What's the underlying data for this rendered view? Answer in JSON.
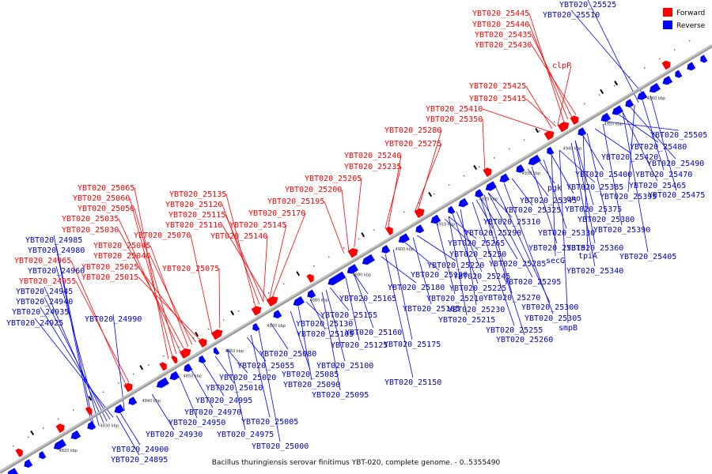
{
  "caption": "Bacillus thuringiensis serovar finitimus YBT-020, complete genome. - 0..5355490",
  "legend": [
    {
      "label": "Forward",
      "color": "#ff0000"
    },
    {
      "label": "Reverse",
      "color": "#0000ff"
    }
  ],
  "colors": {
    "forward": "#ff0000",
    "reverse": "#0000ff",
    "backbone": "#888888"
  },
  "tick_labels": [
    "4820 kbp",
    "4830 kbp",
    "4840 kbp",
    "4850 kbp",
    "4860 kbp",
    "4870 kbp",
    "4880 kbp",
    "4890 kbp",
    "4900 kbp",
    "4910 kbp",
    "4920 kbp",
    "4930 kbp",
    "4940 kbp",
    "4950 kbp",
    "4960 kbp"
  ],
  "forward_labels": [
    "YBT020_25445",
    "YBT020_25440",
    "YBT020_25435",
    "YBT020_25430",
    "clpP",
    "YBT020_25425",
    "YBT020_25415",
    "YBT020_25410",
    "YBT020_25350",
    "YBT020_25280",
    "YBT020_25275",
    "YBT020_25240",
    "YBT020_25235",
    "YBT020_25205",
    "YBT020_25200",
    "YBT020_25195",
    "YBT020_25065",
    "YBT020_25060",
    "YBT020_25050",
    "YBT020_25035",
    "YBT020_25030",
    "YBT020_25045",
    "YBT020_25040",
    "YBT020_25025",
    "YBT020_25015",
    "YBT020_25070",
    "YBT020_25135",
    "YBT020_25120",
    "YBT020_25115",
    "YBT020_25110",
    "YBT020_25170",
    "YBT020_25145",
    "YBT020_25140",
    "YBT020_25075",
    "YBT020_24965",
    "YBT020_24955"
  ],
  "reverse_labels": [
    "YBT020_25525",
    "YBT020_25510",
    "YBT020_25505",
    "YBT020_25480",
    "YBT020_25490",
    "YBT020_25420",
    "YBT020_25470",
    "YBT020_25400",
    "YBT020_25465",
    "YBT020_25385",
    "YBT020_25395",
    "YBT020_25475",
    "pgk",
    "eno",
    "YBT020_25345",
    "YBT020_25375",
    "YBT020_25325",
    "YBT020_25380",
    "YBT020_25310",
    "YBT020_25390",
    "YBT020_25330",
    "YBT020_25290",
    "YBT020_25315",
    "YBT020_25265",
    "YBT020_25360",
    "secG",
    "YBT020_25250",
    "YBT020_25285",
    "tpiA",
    "YBT020_25405",
    "YBT020_25220",
    "YBT020_25340",
    "YBT020_25245",
    "YBT020_25190",
    "YBT020_25295",
    "YBT020_25180",
    "YBT020_25225",
    "YBT020_25165",
    "YBT020_25210",
    "YBT020_25270",
    "YBT020_25185",
    "YBT020_25230",
    "YBT020_25300",
    "YBT020_25155",
    "YBT020_25215",
    "YBT020_25305",
    "YBT020_25130",
    "YBT020_25160",
    "smpB",
    "YBT020_25255",
    "YBT020_25105",
    "YBT020_25125",
    "YBT020_25175",
    "YBT020_25260",
    "YBT020_25080",
    "YBT020_25100",
    "YBT020_25055",
    "YBT020_25085",
    "YBT020_25020",
    "YBT020_25090",
    "YBT020_25150",
    "YBT020_25010",
    "YBT020_25095",
    "YBT020_24995",
    "YBT020_24970",
    "YBT020_24950",
    "YBT020_25005",
    "YBT020_24930",
    "YBT020_24975",
    "YBT020_25000",
    "YBT020_24900",
    "YBT020_24895",
    "YBT020_24985",
    "YBT020_24980",
    "YBT020_24960",
    "YBT020_24945",
    "YBT020_24940",
    "YBT020_24935",
    "YBT020_24925",
    "YBT020_24990"
  ]
}
